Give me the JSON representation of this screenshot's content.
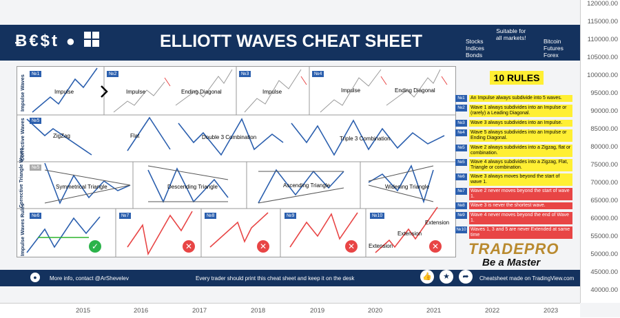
{
  "y_axis": {
    "ticks": [
      "120000.00",
      "115000.00",
      "110000.00",
      "105000.00",
      "100000.00",
      "95000.00",
      "90000.00",
      "85000.00",
      "80000.00",
      "75000.00",
      "70000.00",
      "65000.00",
      "60000.00",
      "55000.00",
      "50000.00",
      "45000.00",
      "40000.00"
    ]
  },
  "x_axis": {
    "ticks": [
      "2015",
      "2016",
      "2017",
      "2018",
      "2019",
      "2020",
      "2021",
      "2022",
      "2023"
    ]
  },
  "header": {
    "logos": "Ƀ€$t",
    "title": "ELLIOTT WAVES CHEAT SHEET",
    "markets_left": [
      "Stocks",
      "Indices",
      "Bonds"
    ],
    "suitable": [
      "Suitable for",
      "all markets!"
    ],
    "markets_right": [
      "Bitcoin",
      "Futures",
      "Forex"
    ]
  },
  "sheet": {
    "row_labels": [
      "Impulse Waves",
      "Corrective Waves",
      "Corrective Triangle Waves",
      "Impulse Waves Rules"
    ],
    "panels": [
      {
        "num": "№1",
        "label": "Impulse"
      },
      {
        "num": "№2",
        "label": "Impulse",
        "label2": "Ending Diagonal"
      },
      {
        "num": "№3",
        "label": "Impulse"
      },
      {
        "num": "№4",
        "label": "Impulse",
        "label2": "Ending Diagonal"
      },
      {
        "num": "№5",
        "label": "ZigZag",
        "label2": "Flat",
        "label3": "Double 3 Combination",
        "label4": "Triple 3 Combination"
      },
      {
        "num": "№5",
        "label": "Symmetrical Triangle",
        "label2": "Descending Triangle",
        "label3": "Ascending Triangle",
        "label4": "Widening Triangle"
      },
      {
        "num": "№6"
      },
      {
        "num": "№7"
      },
      {
        "num": "№8"
      },
      {
        "num": "№9"
      },
      {
        "num": "№10",
        "label": "Extension",
        "label2": "Extension",
        "label3": "Extension"
      }
    ]
  },
  "rules": {
    "heading": "10 RULES",
    "items": [
      {
        "num": "№1",
        "text": "An Impulse always subdivide into 5 waves.",
        "kind": "yel"
      },
      {
        "num": "№2",
        "text": "Wave 1 always subdivides into an Impulse or (rarely) a Leading Diagonal.",
        "kind": "yel"
      },
      {
        "num": "№3",
        "text": "Wave 3 always subdivides into an Impulse.",
        "kind": "yel"
      },
      {
        "num": "№4",
        "text": "Wave 5 always subdivides into an Impulse or Ending Diagonal.",
        "kind": "yel"
      },
      {
        "num": "№5",
        "text": "Wave 2 always subdivides into a Zigzag, flat or combination.",
        "kind": "yel"
      },
      {
        "num": "№5",
        "text": "Wave 4 always subdivides into a Zigzag, Flat, Triangle or combination.",
        "kind": "yel"
      },
      {
        "num": "№6",
        "text": "Wave 3 always moves beyond the start of wave 1.",
        "kind": "yel"
      },
      {
        "num": "№7",
        "text": "Wave 2 never moves beyond the start of wave 1.",
        "kind": "red"
      },
      {
        "num": "№8",
        "text": "Wave 3 is never the shortest wave.",
        "kind": "red"
      },
      {
        "num": "№9",
        "text": "Wave 4 never moves beyond the end of Wave 1.",
        "kind": "red"
      },
      {
        "num": "№10",
        "text": "Waves 1, 3 and 5 are never Extended at same time",
        "kind": "red"
      }
    ]
  },
  "brand": {
    "name": "TRADEPRO",
    "tagline": "Be a Master"
  },
  "footer": {
    "contact": "More info, contact @ArShevelev",
    "message": "Every trader should print this cheat sheet and keep it on the desk",
    "credit": "Cheatsheet made on TradingView.com"
  }
}
